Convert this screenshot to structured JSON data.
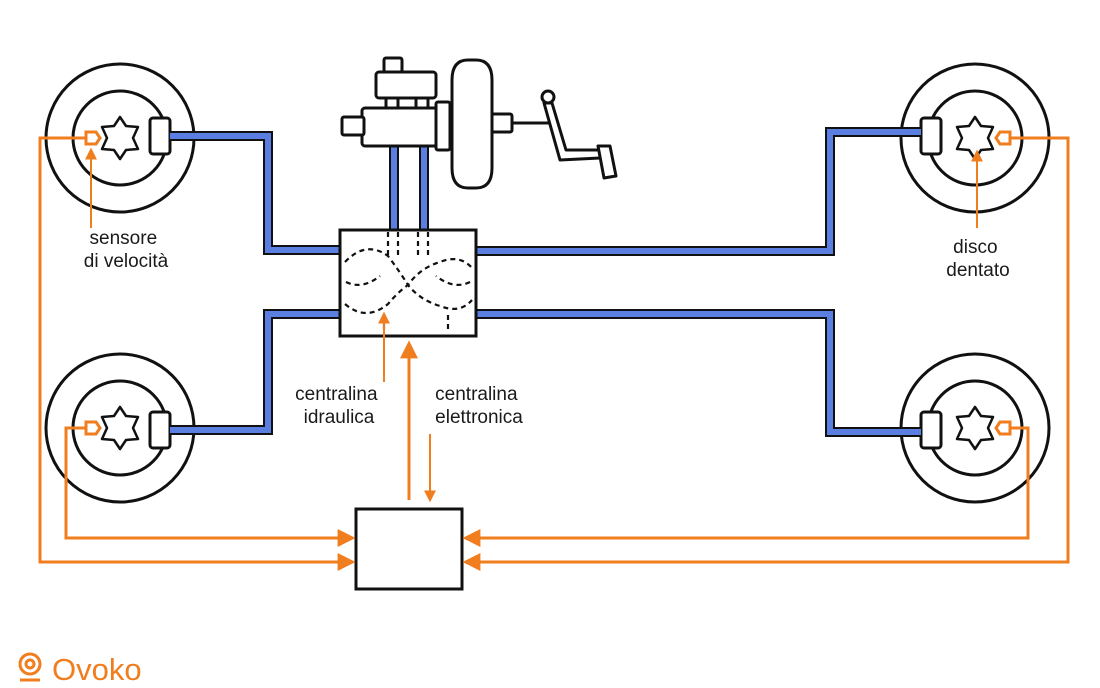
{
  "colors": {
    "brake_line": "#5b7fe0",
    "signal_wire": "#f07d1e",
    "outline": "#111111",
    "brand": "#f07d1e"
  },
  "labels": {
    "speed_sensor": [
      "sensore",
      "di velocità"
    ],
    "toothed_disc": [
      "disco",
      "dentato"
    ],
    "hydraulic_unit": [
      "centralina",
      "idraulica"
    ],
    "electronic_unit": [
      "centralina",
      "elettronica"
    ]
  },
  "brand": {
    "name": "Ovoko",
    "icon": "ovoko-logo-icon"
  }
}
